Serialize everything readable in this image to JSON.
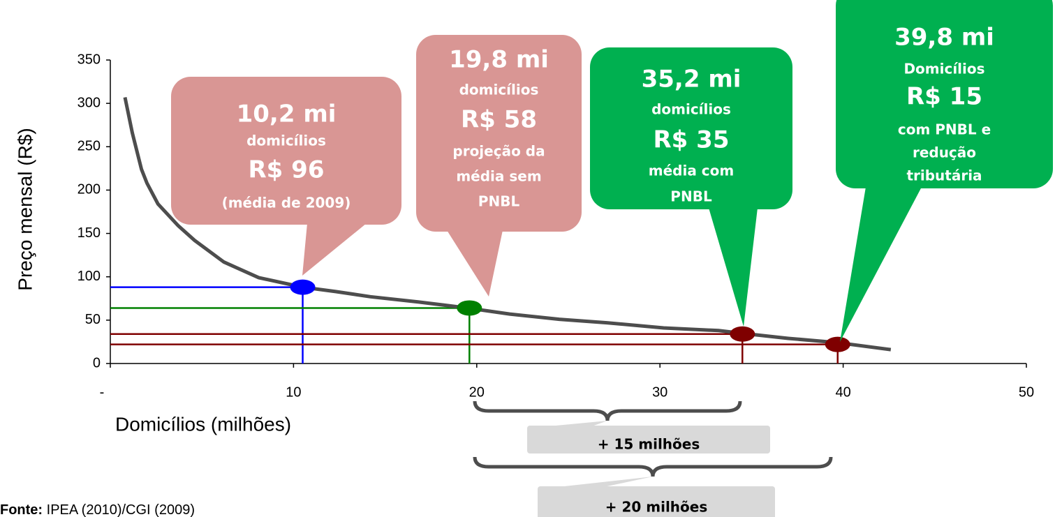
{
  "chart_data": {
    "type": "line",
    "y_label": "Preço mensal (R$)",
    "x_label": "Domicílios (milhões)",
    "xlim": [
      0,
      50
    ],
    "xticks": [
      {
        "value": 0,
        "label": "-"
      },
      10,
      20,
      30,
      40,
      50
    ],
    "ylim": [
      0,
      350
    ],
    "yticks": [
      0,
      50,
      100,
      150,
      200,
      250,
      300,
      350
    ],
    "series": [
      {
        "color": "#4d4d4d",
        "x": [
          0.8,
          1.2,
          1.7,
          2.0,
          2.6,
          3.7,
          4.6,
          6.2,
          8.1,
          10.5,
          12.3,
          14.2,
          16.8,
          19.5,
          21.8,
          24.5,
          27.1,
          30.2,
          33.2,
          34.4,
          37.0,
          39.7,
          42.6
        ],
        "values": [
          307,
          266,
          224,
          208,
          184,
          159,
          142,
          117,
          99,
          88,
          83,
          77,
          71,
          64,
          57,
          51,
          47,
          41,
          38,
          35,
          29,
          24,
          16
        ]
      }
    ],
    "points": [
      {
        "x": 10.5,
        "y": 88,
        "color": "#0000ff"
      },
      {
        "x": 19.6,
        "y": 64,
        "color": "#008000"
      },
      {
        "x": 34.5,
        "y": 34,
        "color": "#7f0000"
      },
      {
        "x": 39.7,
        "y": 22,
        "color": "#7f0000"
      }
    ],
    "callouts": [
      {
        "color": "#d99694",
        "lines": [
          "10,2 mi",
          "domicílios",
          "R$ 96",
          "(média de 2009)"
        ]
      },
      {
        "color": "#d99694",
        "lines": [
          "19,8 mi",
          "domicílios",
          "R$ 58",
          "projeção da",
          "média sem",
          "PNBL"
        ]
      },
      {
        "color": "#00b050",
        "lines": [
          "35,2 mi",
          "domicílios",
          "R$ 35",
          "média com",
          "PNBL"
        ]
      },
      {
        "color": "#00b050",
        "lines": [
          "39,8 mi",
          "Domicílios",
          "R$ 15",
          "com PNBL e",
          "redução",
          "tributária"
        ]
      }
    ],
    "ranges": [
      "+ 15 milhões",
      "+ 20 milhões"
    ],
    "source": {
      "label": "Fonte:",
      "text": "IPEA (2010)/CGI (2009)"
    }
  }
}
